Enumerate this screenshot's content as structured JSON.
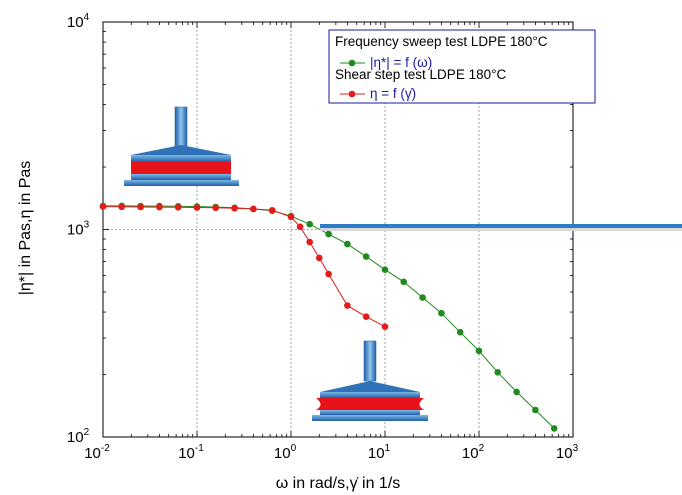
{
  "chart_data": {
    "type": "line",
    "x_scale": "log",
    "y_scale": "log",
    "xlim": [
      0.01,
      1000
    ],
    "ylim": [
      100,
      10000
    ],
    "grid": true,
    "legend_position": "top-right",
    "x_ticks": [
      {
        "value": 0.01,
        "base": "10",
        "exp": "-2"
      },
      {
        "value": 0.1,
        "base": "10",
        "exp": "-1"
      },
      {
        "value": 1,
        "base": "10",
        "exp": "0"
      },
      {
        "value": 10,
        "base": "10",
        "exp": "1"
      },
      {
        "value": 100,
        "base": "10",
        "exp": "2"
      },
      {
        "value": 1000,
        "base": "10",
        "exp": "3"
      }
    ],
    "y_ticks": [
      {
        "value": 100,
        "base": "10",
        "exp": "2"
      },
      {
        "value": 1000,
        "base": "10",
        "exp": "3"
      },
      {
        "value": 10000,
        "base": "10",
        "exp": "4"
      }
    ],
    "xlabel": "ω in rad/s,γ̇ in 1/s",
    "ylabel": "|η*| in Pas,η in Pas",
    "series": [
      {
        "name": "Frequency sweep test LDPE 180°C",
        "formula": "|η*| = f (ω)",
        "color": "#1f8a1f",
        "x": [
          0.01,
          0.0158,
          0.0251,
          0.0398,
          0.0631,
          0.1,
          0.158,
          0.251,
          0.398,
          0.631,
          1.0,
          1.58,
          2.51,
          3.98,
          6.31,
          10,
          15.8,
          25.1,
          39.8,
          63.1,
          100,
          158,
          251,
          398,
          631
        ],
        "y": [
          1300,
          1300,
          1298,
          1296,
          1293,
          1289,
          1283,
          1272,
          1257,
          1232,
          1160,
          1060,
          950,
          850,
          740,
          640,
          560,
          470,
          395,
          320,
          260,
          205,
          165,
          135,
          110
        ]
      },
      {
        "name": "Shear step test LDPE 180°C",
        "formula": "η = f (γ̇)",
        "color": "#e31b1b",
        "x": [
          0.01,
          0.0158,
          0.0251,
          0.0398,
          0.0631,
          0.1,
          0.158,
          0.251,
          0.398,
          0.631,
          1.0,
          1.25,
          1.58,
          2.0,
          2.51,
          3.98,
          6.31,
          10
        ],
        "y": [
          1290,
          1287,
          1284,
          1282,
          1280,
          1277,
          1272,
          1265,
          1255,
          1238,
          1150,
          1030,
          870,
          730,
          610,
          430,
          380,
          340
        ]
      }
    ]
  }
}
